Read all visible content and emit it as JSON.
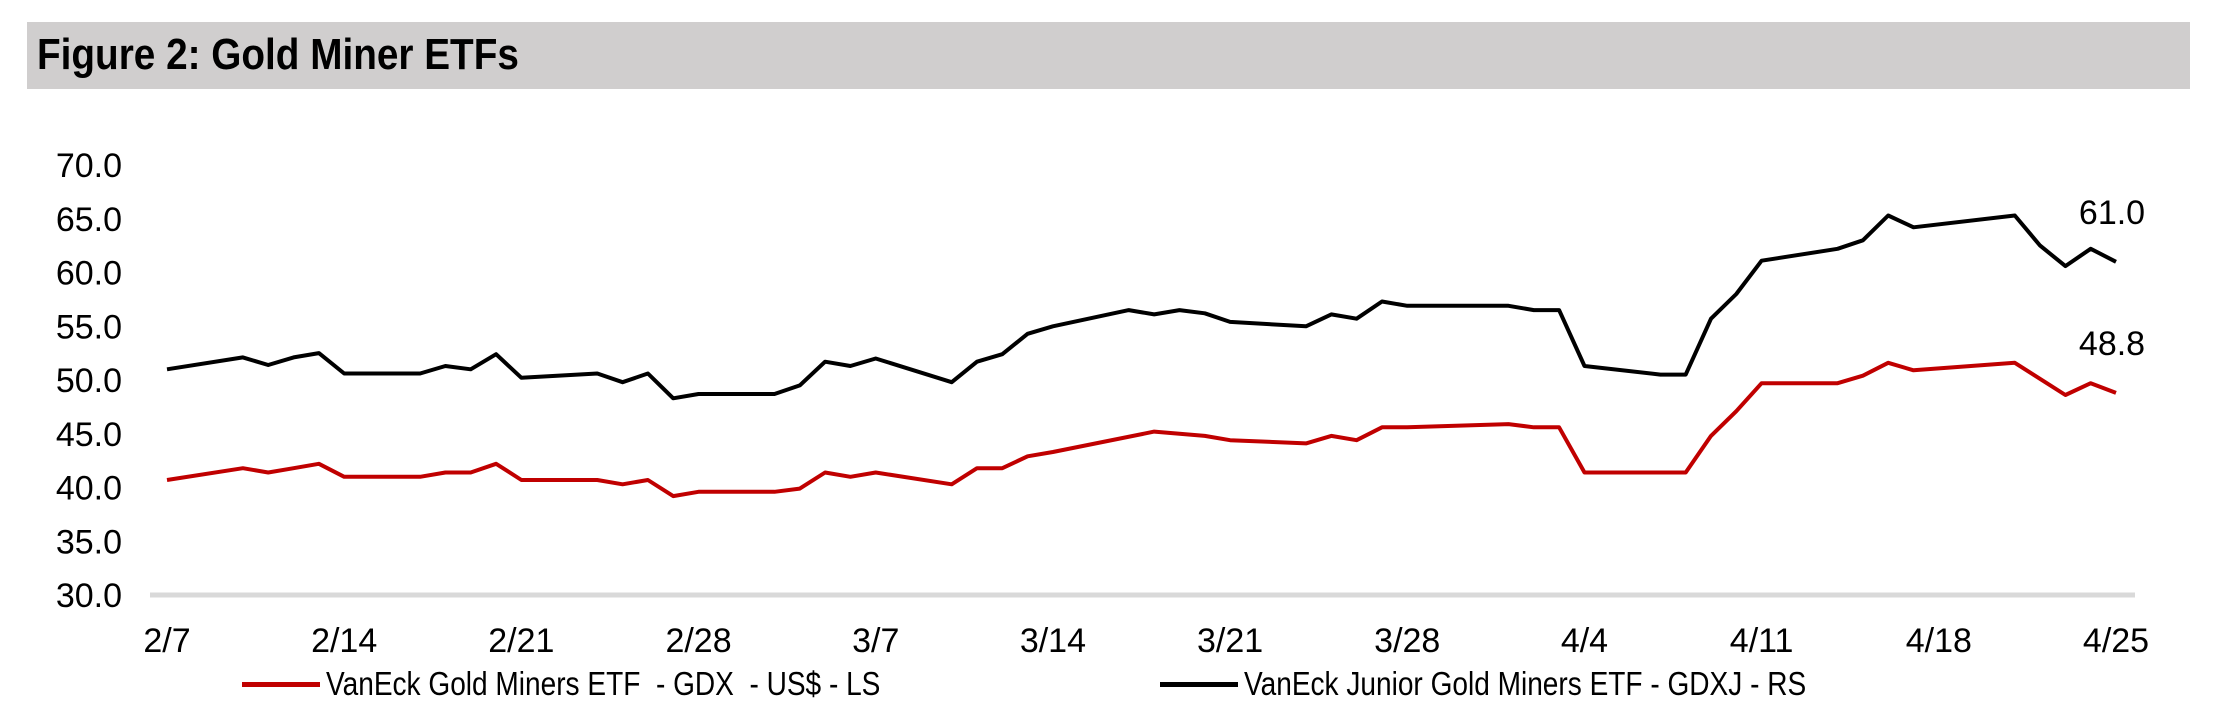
{
  "title": "Figure 2: Gold Miner ETFs",
  "chart_data": {
    "type": "line",
    "title": "Figure 2: Gold Miner ETFs",
    "xlabel": "",
    "ylabel": "",
    "ylim": [
      30,
      70
    ],
    "yticks": [
      "30.0",
      "35.0",
      "40.0",
      "45.0",
      "50.0",
      "55.0",
      "60.0",
      "65.0",
      "70.0"
    ],
    "xticks": [
      "2/7",
      "2/14",
      "2/21",
      "2/28",
      "3/7",
      "3/14",
      "3/21",
      "3/28",
      "4/4",
      "4/11",
      "4/18",
      "4/25"
    ],
    "grid": false,
    "legend_position": "bottom",
    "series": [
      {
        "name": "VanEck Gold Miners ETF  - GDX  - US$ - LS",
        "color": "#c00000",
        "end_label": "48.8",
        "x": [
          "2/7",
          "2/10",
          "2/11",
          "2/12",
          "2/13",
          "2/14",
          "2/17",
          "2/18",
          "2/19",
          "2/20",
          "2/21",
          "2/24",
          "2/25",
          "2/26",
          "2/27",
          "2/28",
          "3/3",
          "3/4",
          "3/5",
          "3/6",
          "3/7",
          "3/10",
          "3/11",
          "3/12",
          "3/13",
          "3/14",
          "3/18",
          "3/19",
          "3/20",
          "3/21",
          "3/24",
          "3/25",
          "3/26",
          "3/27",
          "3/28",
          "4/1",
          "4/2",
          "4/3",
          "4/4",
          "4/7",
          "4/8",
          "4/9",
          "4/10",
          "4/11",
          "4/14",
          "4/15",
          "4/16",
          "4/17",
          "4/21",
          "4/23",
          "4/24",
          "4/25"
        ],
        "values": [
          40.7,
          41.8,
          41.4,
          41.8,
          42.2,
          41.0,
          41.0,
          41.4,
          41.4,
          42.2,
          40.7,
          40.7,
          40.3,
          40.7,
          39.2,
          39.6,
          39.6,
          39.9,
          41.4,
          41.0,
          41.4,
          40.3,
          41.8,
          41.8,
          42.9,
          43.3,
          45.2,
          45.0,
          44.8,
          44.4,
          44.1,
          44.8,
          44.4,
          45.6,
          45.6,
          45.9,
          45.6,
          45.6,
          41.4,
          41.4,
          41.4,
          44.8,
          47.1,
          49.7,
          49.7,
          50.4,
          51.6,
          50.9,
          51.6,
          48.6,
          49.7,
          48.8
        ]
      },
      {
        "name": "VanEck Junior Gold Miners ETF - GDXJ - RS",
        "color": "#000000",
        "end_label": "61.0",
        "x": [
          "2/7",
          "2/10",
          "2/11",
          "2/12",
          "2/13",
          "2/14",
          "2/17",
          "2/18",
          "2/19",
          "2/20",
          "2/21",
          "2/24",
          "2/25",
          "2/26",
          "2/27",
          "2/28",
          "3/3",
          "3/4",
          "3/5",
          "3/6",
          "3/7",
          "3/10",
          "3/11",
          "3/12",
          "3/13",
          "3/14",
          "3/17",
          "3/18",
          "3/19",
          "3/20",
          "3/21",
          "3/24",
          "3/25",
          "3/26",
          "3/27",
          "3/28",
          "3/31",
          "4/1",
          "4/2",
          "4/3",
          "4/4",
          "4/7",
          "4/8",
          "4/9",
          "4/10",
          "4/11",
          "4/14",
          "4/15",
          "4/16",
          "4/17",
          "4/21",
          "4/22",
          "4/23",
          "4/24",
          "4/25"
        ],
        "values": [
          51.0,
          52.1,
          51.4,
          52.1,
          52.5,
          50.6,
          50.6,
          51.3,
          51.0,
          52.4,
          50.2,
          50.6,
          49.8,
          50.6,
          48.3,
          48.7,
          48.7,
          49.5,
          51.7,
          51.3,
          52.0,
          49.8,
          51.7,
          52.4,
          54.3,
          55.0,
          56.5,
          56.1,
          56.5,
          56.2,
          55.4,
          55.0,
          56.1,
          55.7,
          57.3,
          56.9,
          56.9,
          56.9,
          56.5,
          56.5,
          51.3,
          50.5,
          50.5,
          55.7,
          58.0,
          61.1,
          62.2,
          63.0,
          65.3,
          64.2,
          65.3,
          62.5,
          60.6,
          62.2,
          61.0
        ]
      }
    ]
  }
}
